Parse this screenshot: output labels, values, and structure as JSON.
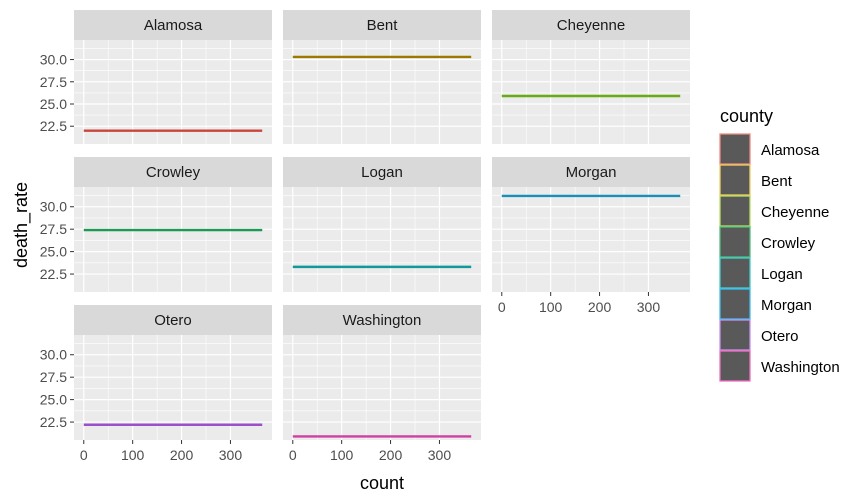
{
  "chart_data": {
    "type": "line",
    "xlabel": "count",
    "ylabel": "death_rate",
    "xlim": [
      -20,
      385
    ],
    "ylim": [
      20.5,
      32.2
    ],
    "x_ticks": [
      0,
      100,
      200,
      300
    ],
    "y_ticks": [
      22.5,
      25.0,
      27.5,
      30.0
    ],
    "y_tick_labels": [
      "22.5",
      "25.0",
      "27.5",
      "30.0"
    ],
    "grid": true,
    "facet_layout": {
      "rows": 3,
      "cols": 3
    },
    "legend": {
      "title": "county",
      "position": "right"
    },
    "series": [
      {
        "name": "Alamosa",
        "color": "#c8463c",
        "x": [
          0,
          365
        ],
        "y": [
          22.0,
          22.0
        ]
      },
      {
        "name": "Bent",
        "color": "#9a7a00",
        "x": [
          0,
          365
        ],
        "y": [
          30.3,
          30.3
        ]
      },
      {
        "name": "Cheyenne",
        "color": "#6aaa18",
        "x": [
          0,
          365
        ],
        "y": [
          25.9,
          25.9
        ]
      },
      {
        "name": "Crowley",
        "color": "#1a9a55",
        "x": [
          0,
          365
        ],
        "y": [
          27.4,
          27.4
        ]
      },
      {
        "name": "Logan",
        "color": "#10999a",
        "x": [
          0,
          365
        ],
        "y": [
          23.3,
          23.3
        ]
      },
      {
        "name": "Morgan",
        "color": "#1890b8",
        "x": [
          0,
          365
        ],
        "y": [
          31.2,
          31.2
        ]
      },
      {
        "name": "Otero",
        "color": "#9a50c8",
        "x": [
          0,
          365
        ],
        "y": [
          22.2,
          22.2
        ]
      },
      {
        "name": "Washington",
        "color": "#d040a0",
        "x": [
          0,
          365
        ],
        "y": [
          20.9,
          20.9
        ]
      }
    ],
    "legend_entries": [
      "Alamosa",
      "Bent",
      "Cheyenne",
      "Crowley",
      "Logan",
      "Morgan",
      "Otero",
      "Washington"
    ],
    "legend_outline_colors": [
      "#f08a80",
      "#f0d060",
      "#b8e060",
      "#50c080",
      "#40d0d0",
      "#40c0f0",
      "#c890f0",
      "#f070c0"
    ],
    "legend_key_fill": "#595959"
  }
}
